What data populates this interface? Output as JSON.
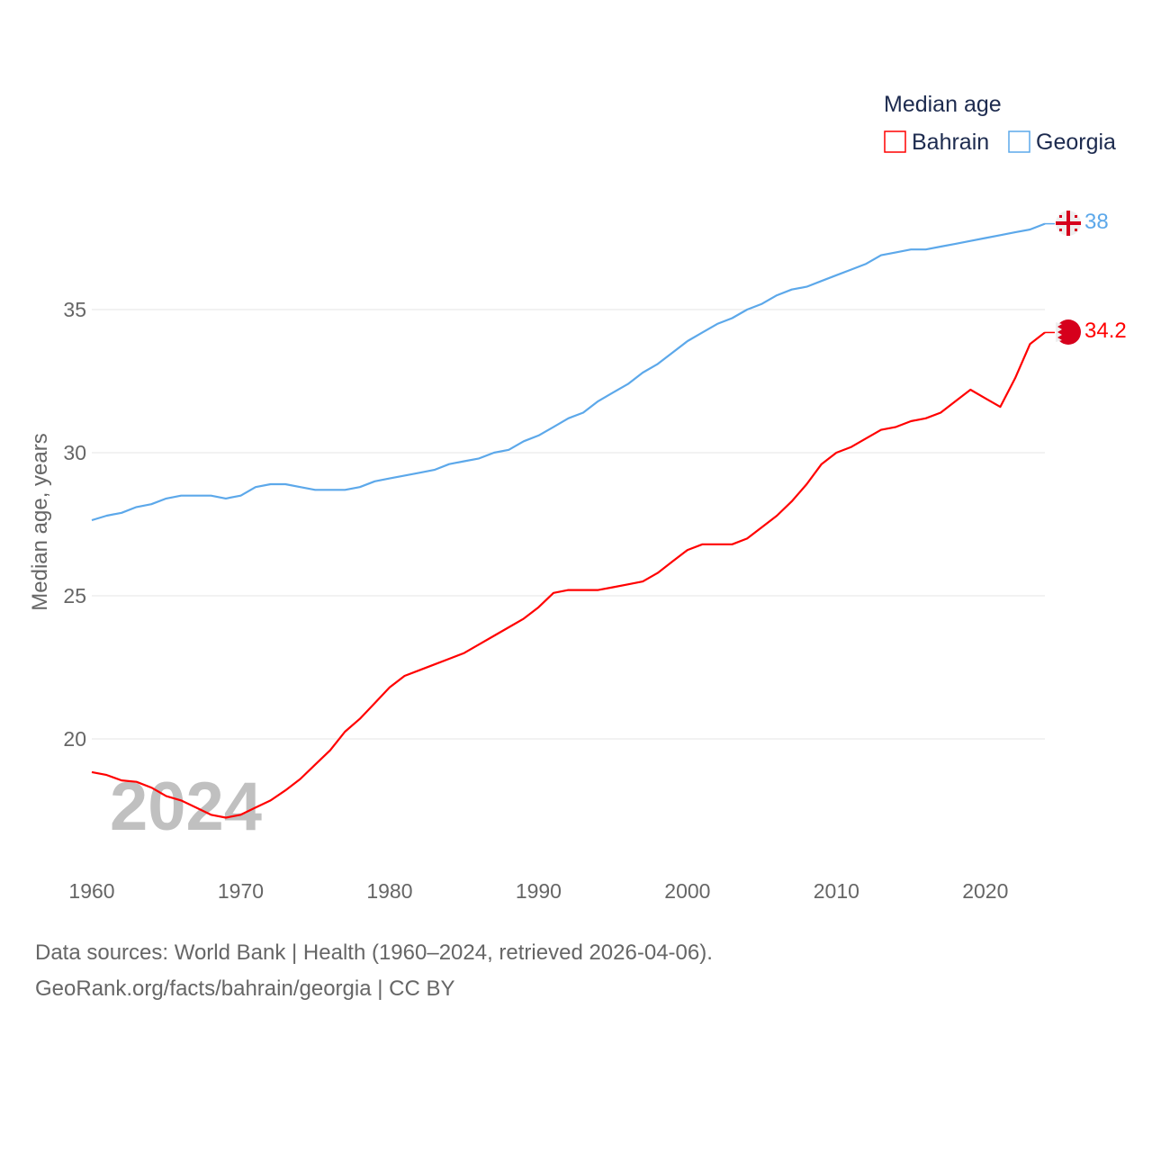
{
  "chart_data": {
    "type": "line",
    "title": "",
    "legend_title": "Median age",
    "legend_position": "top-right",
    "xlabel": "",
    "ylabel": "Median age, years",
    "xlim": [
      1960,
      2024
    ],
    "ylim": [
      15.6,
      38.3
    ],
    "x_ticks": [
      1960,
      1970,
      1980,
      1990,
      2000,
      2010,
      2020
    ],
    "y_ticks": [
      20,
      25,
      30,
      35
    ],
    "grid": true,
    "watermark_year": "2024",
    "x": [
      1960,
      1961,
      1962,
      1963,
      1964,
      1965,
      1966,
      1967,
      1968,
      1969,
      1970,
      1971,
      1972,
      1973,
      1974,
      1975,
      1976,
      1977,
      1978,
      1979,
      1980,
      1981,
      1982,
      1983,
      1984,
      1985,
      1986,
      1987,
      1988,
      1989,
      1990,
      1991,
      1992,
      1993,
      1994,
      1995,
      1996,
      1997,
      1998,
      1999,
      2000,
      2001,
      2002,
      2003,
      2004,
      2005,
      2006,
      2007,
      2008,
      2009,
      2010,
      2011,
      2012,
      2013,
      2014,
      2015,
      2016,
      2017,
      2018,
      2019,
      2020,
      2021,
      2022,
      2023,
      2024
    ],
    "series": [
      {
        "name": "Bahrain",
        "color": "#ff0000",
        "end_label": "34.2",
        "values": [
          18.84,
          18.74,
          18.55,
          18.5,
          18.3,
          18.0,
          17.85,
          17.6,
          17.35,
          17.25,
          17.35,
          17.6,
          17.85,
          18.2,
          18.6,
          19.1,
          19.6,
          20.25,
          20.7,
          21.25,
          21.8,
          22.2,
          22.4,
          22.6,
          22.8,
          23.0,
          23.3,
          23.6,
          23.9,
          24.2,
          24.6,
          25.1,
          25.2,
          25.2,
          25.2,
          25.3,
          25.4,
          25.5,
          25.8,
          26.2,
          26.6,
          26.8,
          26.8,
          26.8,
          27.0,
          27.4,
          27.8,
          28.3,
          28.9,
          29.6,
          30.0,
          30.2,
          30.5,
          30.8,
          30.9,
          31.1,
          31.2,
          31.4,
          31.8,
          32.2,
          31.9,
          31.6,
          32.6,
          33.8,
          34.2
        ]
      },
      {
        "name": "Georgia",
        "color": "#5ca8ea",
        "end_label": "38",
        "values": [
          27.64,
          27.8,
          27.9,
          28.1,
          28.2,
          28.4,
          28.5,
          28.5,
          28.5,
          28.4,
          28.5,
          28.8,
          28.9,
          28.9,
          28.8,
          28.7,
          28.7,
          28.7,
          28.8,
          29.0,
          29.1,
          29.2,
          29.3,
          29.4,
          29.6,
          29.7,
          29.8,
          30.0,
          30.1,
          30.4,
          30.6,
          30.9,
          31.2,
          31.4,
          31.8,
          32.1,
          32.4,
          32.8,
          33.1,
          33.5,
          33.9,
          34.2,
          34.5,
          34.7,
          35.0,
          35.2,
          35.5,
          35.7,
          35.8,
          36.0,
          36.2,
          36.4,
          36.6,
          36.9,
          37.0,
          37.1,
          37.1,
          37.2,
          37.3,
          37.4,
          37.5,
          37.6,
          37.7,
          37.8,
          38.0
        ]
      }
    ]
  },
  "footer": {
    "line1": "Data sources: World Bank | Health (1960–2024, retrieved 2026-04-06).",
    "line2": "GeoRank.org/facts/bahrain/georgia | CC BY"
  }
}
